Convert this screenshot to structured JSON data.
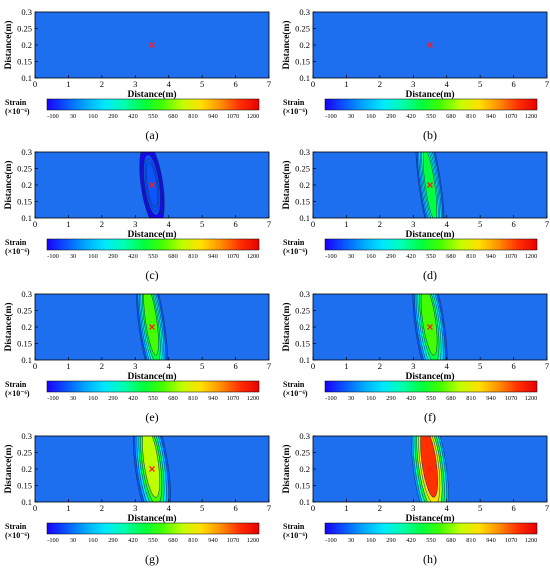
{
  "figure": {
    "xlabel": "Distance(m)",
    "ylabel": "Distance(m)",
    "colorbar_title": "Strain",
    "colorbar_unit": "(×10⁻⁶)"
  },
  "colors": {
    "colormap": [
      "#1a00ff",
      "#0a55ff",
      "#00a8ff",
      "#00e8ff",
      "#00ffb0",
      "#00ff40",
      "#44ff00",
      "#c0ff00",
      "#ffe000",
      "#ff9000",
      "#ff3000",
      "#e80000"
    ],
    "background_field": "#1e6ef0",
    "source_marker": "#ff1a1a"
  },
  "chart_data": [
    {
      "type": "heatmap",
      "caption": "(a)",
      "x": {
        "min": 0,
        "max": 7,
        "ticks": [
          "0",
          "1",
          "2",
          "3",
          "4",
          "5",
          "6",
          "7"
        ]
      },
      "y": {
        "min": 0.1,
        "max": 0.3,
        "ticks": [
          "0.1",
          "0.15",
          "0.2",
          "0.25",
          "0.3"
        ]
      },
      "colorbar_ticks": [
        "-100",
        "30",
        "160",
        "290",
        "420",
        "550",
        "680",
        "810",
        "940",
        "1070",
        "1200"
      ],
      "source": [
        3.5,
        0.2
      ],
      "strain_peak": 0,
      "strain_halfwidth_x": 0.3
    },
    {
      "type": "heatmap",
      "caption": "(b)",
      "x": {
        "min": 0,
        "max": 7,
        "ticks": [
          "0",
          "1",
          "2",
          "3",
          "4",
          "5",
          "6",
          "7"
        ]
      },
      "y": {
        "min": 0.1,
        "max": 0.3,
        "ticks": [
          "0.1",
          "0.15",
          "0.2",
          "0.25",
          "0.3"
        ]
      },
      "colorbar_ticks": [
        "-100",
        "30",
        "160",
        "290",
        "420",
        "550",
        "680",
        "810",
        "940",
        "1070",
        "1200"
      ],
      "source": [
        3.5,
        0.2
      ],
      "strain_peak": 0,
      "strain_halfwidth_x": 0.3
    },
    {
      "type": "heatmap",
      "caption": "(c)",
      "x": {
        "min": 0,
        "max": 7,
        "ticks": [
          "0",
          "1",
          "2",
          "3",
          "4",
          "5",
          "6",
          "7"
        ]
      },
      "y": {
        "min": 0.1,
        "max": 0.3,
        "ticks": [
          "0.1",
          "0.15",
          "0.2",
          "0.25",
          "0.3"
        ]
      },
      "colorbar_ticks": [
        "-100",
        "30",
        "160",
        "290",
        "420",
        "550",
        "680",
        "810",
        "940",
        "1070",
        "1200"
      ],
      "source": [
        3.5,
        0.2
      ],
      "strain_peak": 80,
      "strain_halfwidth_x": 0.3
    },
    {
      "type": "heatmap",
      "caption": "(d)",
      "x": {
        "min": 0,
        "max": 7,
        "ticks": [
          "0",
          "1",
          "2",
          "3",
          "4",
          "5",
          "6",
          "7"
        ]
      },
      "y": {
        "min": 0.1,
        "max": 0.3,
        "ticks": [
          "0.1",
          "0.15",
          "0.2",
          "0.25",
          "0.3"
        ]
      },
      "colorbar_ticks": [
        "-100",
        "30",
        "160",
        "290",
        "420",
        "550",
        "680",
        "810",
        "940",
        "1070",
        "1200"
      ],
      "source": [
        3.5,
        0.2
      ],
      "strain_peak": 550,
      "strain_halfwidth_x": 0.3
    },
    {
      "type": "heatmap",
      "caption": "(e)",
      "x": {
        "min": 0,
        "max": 7,
        "ticks": [
          "0",
          "1",
          "2",
          "3",
          "4",
          "5",
          "6",
          "7"
        ]
      },
      "y": {
        "min": 0.1,
        "max": 0.3,
        "ticks": [
          "0.1",
          "0.15",
          "0.2",
          "0.25",
          "0.3"
        ]
      },
      "colorbar_ticks": [
        "-100",
        "30",
        "160",
        "290",
        "420",
        "550",
        "680",
        "810",
        "940",
        "1070",
        "1200"
      ],
      "source": [
        3.5,
        0.2
      ],
      "strain_peak": 620,
      "strain_halfwidth_x": 0.35
    },
    {
      "type": "heatmap",
      "caption": "(f)",
      "x": {
        "min": 0,
        "max": 7,
        "ticks": [
          "0",
          "1",
          "2",
          "3",
          "4",
          "5",
          "6",
          "7"
        ]
      },
      "y": {
        "min": 0.1,
        "max": 0.3,
        "ticks": [
          "0.1",
          "0.15",
          "0.2",
          "0.25",
          "0.3"
        ]
      },
      "colorbar_ticks": [
        "-100",
        "30",
        "160",
        "290",
        "420",
        "550",
        "680",
        "810",
        "940",
        "1070",
        "1200"
      ],
      "source": [
        3.5,
        0.2
      ],
      "strain_peak": 650,
      "strain_halfwidth_x": 0.4
    },
    {
      "type": "heatmap",
      "caption": "(g)",
      "x": {
        "min": 0,
        "max": 7,
        "ticks": [
          "0",
          "1",
          "2",
          "3",
          "4",
          "5",
          "6",
          "7"
        ]
      },
      "y": {
        "min": 0.1,
        "max": 0.3,
        "ticks": [
          "0.1",
          "0.15",
          "0.2",
          "0.25",
          "0.3"
        ]
      },
      "colorbar_ticks": [
        "-100",
        "30",
        "160",
        "290",
        "420",
        "550",
        "680",
        "810",
        "940",
        "1070",
        "1200"
      ],
      "source": [
        3.5,
        0.2
      ],
      "strain_peak": 750,
      "strain_halfwidth_x": 0.45
    },
    {
      "type": "heatmap",
      "caption": "(h)",
      "x": {
        "min": 0,
        "max": 7,
        "ticks": [
          "0",
          "1",
          "2",
          "3",
          "4",
          "5",
          "6",
          "7"
        ]
      },
      "y": {
        "min": 0.1,
        "max": 0.3,
        "ticks": [
          "0.1",
          "0.15",
          "0.2",
          "0.25",
          "0.3"
        ]
      },
      "colorbar_ticks": [
        "-100",
        "30",
        "160",
        "290",
        "420",
        "550",
        "680",
        "810",
        "940",
        "1070",
        "1200"
      ],
      "source": [
        3.5,
        0.2
      ],
      "strain_peak": 1150,
      "strain_halfwidth_x": 0.45
    }
  ]
}
